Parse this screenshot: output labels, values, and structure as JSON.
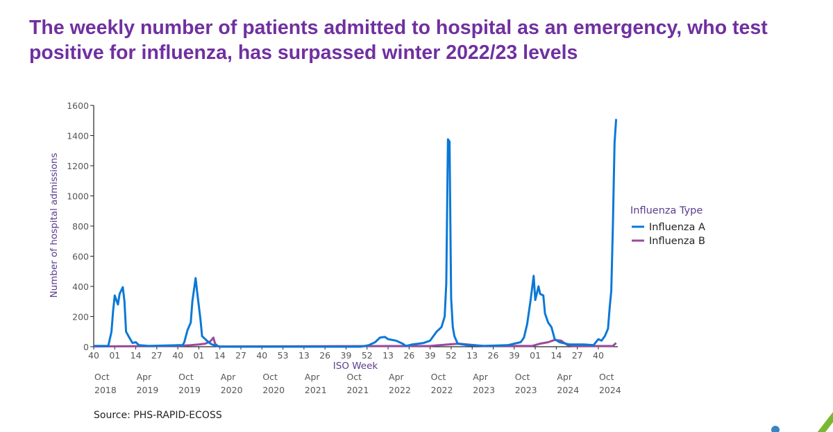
{
  "title": "The weekly number of patients admitted to hospital as an emergency, who test positive for influenza, has surpassed winter 2022/23 levels",
  "source": "Source: PHS-RAPID-ECOSS",
  "chart_data": {
    "type": "line",
    "xlabel": "ISO Week",
    "ylabel": "Number of hospital admissions",
    "ylim": [
      0,
      1600
    ],
    "yticks": [
      "0",
      "200",
      "400",
      "600",
      "800",
      "1000",
      "1200",
      "1400",
      "1600"
    ],
    "xticks": [
      "40",
      "01",
      "14",
      "27",
      "40",
      "01",
      "14",
      "27",
      "40",
      "53",
      "13",
      "26",
      "39",
      "52",
      "13",
      "26",
      "39",
      "52",
      "13",
      "26",
      "39",
      "01",
      "14",
      "27",
      "40"
    ],
    "xdates": [
      [
        "Oct",
        "2018"
      ],
      [
        "Apr",
        "2019"
      ],
      [
        "Oct",
        "2019"
      ],
      [
        "Apr",
        "2020"
      ],
      [
        "Oct",
        "2020"
      ],
      [
        "Apr",
        "2021"
      ],
      [
        "Oct",
        "2021"
      ],
      [
        "Apr",
        "2022"
      ],
      [
        "Oct",
        "2022"
      ],
      [
        "Apr",
        "2023"
      ],
      [
        "Oct",
        "2023"
      ],
      [
        "Apr",
        "2024"
      ],
      [
        "Oct",
        "2024"
      ]
    ],
    "grid": false,
    "legend": {
      "title": "Influenza Type",
      "placement": "right"
    },
    "series": [
      {
        "name": "Influenza A",
        "color": "#0a78d6",
        "points": [
          [
            "2018-W40",
            5
          ],
          [
            "2018-W49",
            5
          ],
          [
            "2018-W51",
            100
          ],
          [
            "2018-W52",
            240
          ],
          [
            "2019-W01",
            340
          ],
          [
            "2019-W03",
            280
          ],
          [
            "2019-W04",
            350
          ],
          [
            "2019-W06",
            395
          ],
          [
            "2019-W07",
            300
          ],
          [
            "2019-W08",
            100
          ],
          [
            "2019-W10",
            60
          ],
          [
            "2019-W12",
            25
          ],
          [
            "2019-W14",
            30
          ],
          [
            "2019-W16",
            10
          ],
          [
            "2019-W22",
            5
          ],
          [
            "2019-W40",
            10
          ],
          [
            "2019-W43",
            10
          ],
          [
            "2019-W44",
            30
          ],
          [
            "2019-W46",
            110
          ],
          [
            "2019-W48",
            160
          ],
          [
            "2019-W49",
            300
          ],
          [
            "2019-W51",
            455
          ],
          [
            "2019-W52",
            360
          ],
          [
            "2020-W02",
            180
          ],
          [
            "2020-W03",
            70
          ],
          [
            "2020-W07",
            30
          ],
          [
            "2020-W09",
            15
          ],
          [
            "2020-W12",
            5
          ],
          [
            "2020-W15",
            0
          ],
          [
            "2021-W48",
            0
          ],
          [
            "2022-W01",
            10
          ],
          [
            "2022-W05",
            30
          ],
          [
            "2022-W08",
            60
          ],
          [
            "2022-W11",
            65
          ],
          [
            "2022-W13",
            50
          ],
          [
            "2022-W18",
            40
          ],
          [
            "2022-W22",
            20
          ],
          [
            "2022-W24",
            5
          ],
          [
            "2022-W28",
            15
          ],
          [
            "2022-W35",
            25
          ],
          [
            "2022-W39",
            40
          ],
          [
            "2022-W41",
            70
          ],
          [
            "2022-W43",
            100
          ],
          [
            "2022-W46",
            130
          ],
          [
            "2022-W48",
            200
          ],
          [
            "2022-W49",
            420
          ],
          [
            "2022-W50",
            1375
          ],
          [
            "2022-W51",
            1360
          ],
          [
            "2022-W52",
            320
          ],
          [
            "2023-W01",
            130
          ],
          [
            "2023-W02",
            70
          ],
          [
            "2023-W04",
            20
          ],
          [
            "2023-W10",
            10
          ],
          [
            "2023-W20",
            5
          ],
          [
            "2023-W35",
            10
          ],
          [
            "2023-W39",
            20
          ],
          [
            "2023-W43",
            30
          ],
          [
            "2023-W45",
            60
          ],
          [
            "2023-W47",
            150
          ],
          [
            "2023-W49",
            300
          ],
          [
            "2023-W51",
            470
          ],
          [
            "2023-W52",
            310
          ],
          [
            "2024-W02",
            400
          ],
          [
            "2024-W03",
            350
          ],
          [
            "2024-W05",
            340
          ],
          [
            "2024-W06",
            220
          ],
          [
            "2024-W08",
            160
          ],
          [
            "2024-W10",
            130
          ],
          [
            "2024-W12",
            50
          ],
          [
            "2024-W15",
            30
          ],
          [
            "2024-W21",
            15
          ],
          [
            "2024-W30",
            15
          ],
          [
            "2024-W36",
            10
          ],
          [
            "2024-W39",
            50
          ],
          [
            "2024-W41",
            40
          ],
          [
            "2024-W43",
            70
          ],
          [
            "2024-W45",
            120
          ],
          [
            "2024-W46",
            260
          ],
          [
            "2024-W47",
            370
          ],
          [
            "2024-W48",
            800
          ],
          [
            "2024-W49",
            1350
          ],
          [
            "2024-W50",
            1510
          ]
        ]
      },
      {
        "name": "Influenza B",
        "color": "#9b4a9c",
        "points": [
          [
            "2018-W40",
            2
          ],
          [
            "2019-W40",
            5
          ],
          [
            "2019-W48",
            10
          ],
          [
            "2020-W01",
            15
          ],
          [
            "2020-W05",
            20
          ],
          [
            "2020-W08",
            35
          ],
          [
            "2020-W10",
            60
          ],
          [
            "2020-W11",
            20
          ],
          [
            "2020-W13",
            2
          ],
          [
            "2022-W39",
            5
          ],
          [
            "2022-W50",
            15
          ],
          [
            "2023-W05",
            20
          ],
          [
            "2023-W10",
            15
          ],
          [
            "2023-W20",
            5
          ],
          [
            "2023-W50",
            5
          ],
          [
            "2024-W03",
            20
          ],
          [
            "2024-W08",
            30
          ],
          [
            "2024-W12",
            45
          ],
          [
            "2024-W16",
            40
          ],
          [
            "2024-W20",
            10
          ],
          [
            "2024-W25",
            3
          ],
          [
            "2024-W48",
            5
          ],
          [
            "2024-W50",
            25
          ]
        ]
      }
    ]
  }
}
